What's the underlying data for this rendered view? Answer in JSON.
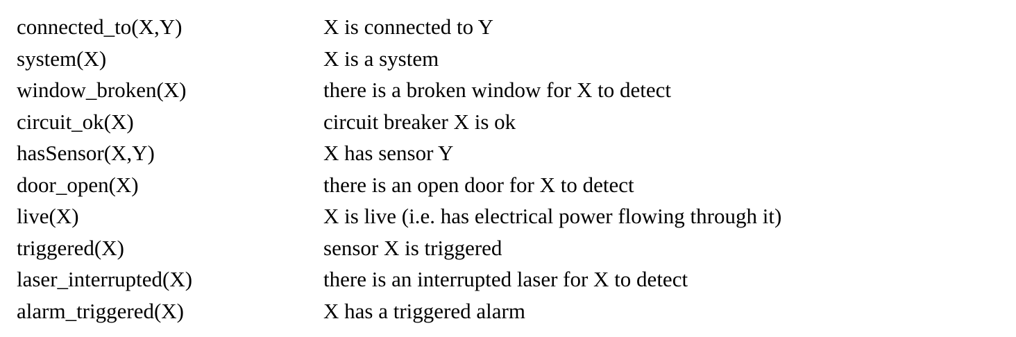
{
  "predicates": [
    {
      "name": "connected_to(X,Y)",
      "meaning": "X is connected to Y"
    },
    {
      "name": "system(X)",
      "meaning": "X is a system"
    },
    {
      "name": "window_broken(X)",
      "meaning": "there is a broken window for X to detect"
    },
    {
      "name": "circuit_ok(X)",
      "meaning": "circuit breaker X is ok"
    },
    {
      "name": "hasSensor(X,Y)",
      "meaning": "X has sensor Y"
    },
    {
      "name": "door_open(X)",
      "meaning": "there is an open door for X to detect"
    },
    {
      "name": "live(X)",
      "meaning": "X is live (i.e. has electrical power flowing through it)"
    },
    {
      "name": "triggered(X)",
      "meaning": "sensor X is triggered"
    },
    {
      "name": "laser_interrupted(X)",
      "meaning": "there is an interrupted laser for X to detect"
    },
    {
      "name": "alarm_triggered(X)",
      "meaning": "X has a triggered alarm"
    }
  ]
}
